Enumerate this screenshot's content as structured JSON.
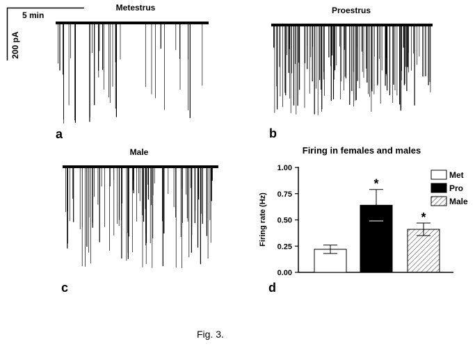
{
  "figure": {
    "caption": "Fig. 3.",
    "scale_bar": {
      "time_label": "5 min",
      "current_label": "200 pA"
    }
  },
  "traces": [
    {
      "id": "a",
      "title": "Metestrus",
      "letter": "a"
    },
    {
      "id": "b",
      "title": "Proestrus",
      "letter": "b"
    },
    {
      "id": "c",
      "title": "Male",
      "letter": "c"
    }
  ],
  "chart_data": {
    "type": "bar",
    "title": "Firing in females and males",
    "ylabel": "Firing rate (Hz)",
    "xlabel": "",
    "ylim": [
      0,
      1.0
    ],
    "yticks": [
      "0.00",
      "0.25",
      "0.50",
      "0.75",
      "1.00"
    ],
    "categories": [
      "Met",
      "Pro",
      "Male"
    ],
    "values": [
      0.22,
      0.64,
      0.41
    ],
    "errors": [
      0.04,
      0.15,
      0.06
    ],
    "significance": [
      "",
      "*",
      "*"
    ],
    "legend": [
      "Met",
      "Pro",
      "Male"
    ],
    "legend_position": "top-right",
    "fills": [
      "white",
      "black",
      "hatched"
    ],
    "panel_letter": "d"
  }
}
